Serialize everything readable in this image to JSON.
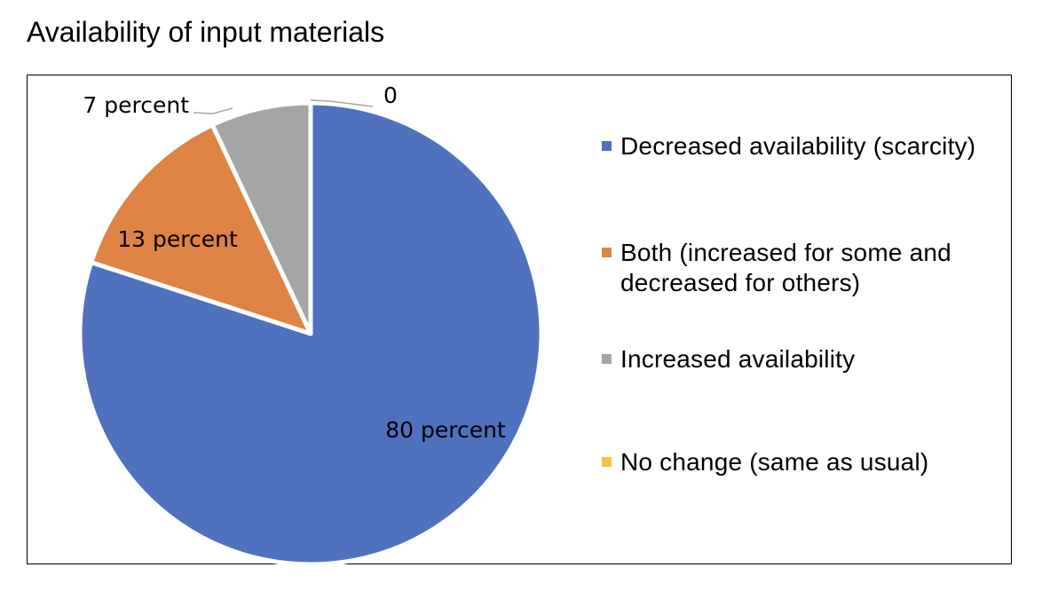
{
  "chart_data": {
    "type": "pie",
    "title": "Availability of input materials",
    "slices": [
      {
        "label": "Decreased availability (scarcity)",
        "value": 80,
        "data_label": "80 percent",
        "color": "#4F71BE"
      },
      {
        "label": "Both (increased for some and decreased for others)",
        "value": 13,
        "data_label": "13 percent",
        "color": "#DE8344"
      },
      {
        "label": "Increased availability",
        "value": 7,
        "data_label": "7 percent",
        "color": "#A5A5A5"
      },
      {
        "label": "No change (same as usual)",
        "value": 0,
        "data_label": "0",
        "color": "#F6C143"
      }
    ],
    "legend_placement": "right"
  }
}
